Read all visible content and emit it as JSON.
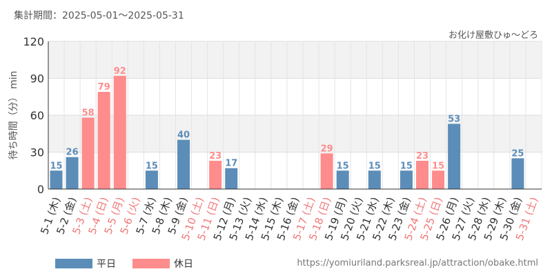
{
  "header": {
    "period_label": "集計期間：2025-05-01～2025-05-31",
    "attraction_name": "お化け屋敷ひゅ～どろ"
  },
  "footer": {
    "url": "https://yomiuriland.parksreal.jp/attraction/obake.html"
  },
  "colors": {
    "weekday": "#5b8db8",
    "holiday": "#ff8c8c",
    "holiday_label": "#f07878",
    "weekday_label": "#333333"
  },
  "chart_data": {
    "type": "bar",
    "title": "",
    "ylabel": "待ち時間（分） min",
    "xlabel": "",
    "ylim": [
      0,
      120
    ],
    "yticks": [
      0,
      30,
      60,
      90,
      120
    ],
    "grid": true,
    "legend_position": "bottom-left",
    "legend": [
      {
        "name": "平日",
        "kind": "weekday"
      },
      {
        "name": "休日",
        "kind": "holiday"
      }
    ],
    "categories": [
      "5-1 (木)",
      "5-2 (金)",
      "5-3 (土)",
      "5-4 (日)",
      "5-5 (月)",
      "5-6 (火)",
      "5-7 (水)",
      "5-8 (木)",
      "5-9 (金)",
      "5-10 (土)",
      "5-11 (日)",
      "5-12 (月)",
      "5-13 (火)",
      "5-14 (水)",
      "5-15 (木)",
      "5-16 (金)",
      "5-17 (土)",
      "5-18 (日)",
      "5-19 (月)",
      "5-20 (火)",
      "5-21 (水)",
      "5-22 (木)",
      "5-23 (金)",
      "5-24 (土)",
      "5-25 (日)",
      "5-26 (月)",
      "5-27 (火)",
      "5-28 (水)",
      "5-29 (木)",
      "5-30 (金)",
      "5-31 (土)"
    ],
    "holiday": [
      false,
      false,
      true,
      true,
      true,
      true,
      false,
      false,
      false,
      true,
      true,
      false,
      false,
      false,
      false,
      false,
      true,
      true,
      false,
      false,
      false,
      false,
      false,
      true,
      true,
      false,
      false,
      false,
      false,
      false,
      true
    ],
    "values": [
      15,
      26,
      58,
      79,
      92,
      null,
      15,
      null,
      40,
      null,
      23,
      17,
      null,
      null,
      null,
      null,
      null,
      29,
      15,
      null,
      15,
      null,
      15,
      23,
      15,
      53,
      null,
      null,
      null,
      25,
      null
    ]
  }
}
